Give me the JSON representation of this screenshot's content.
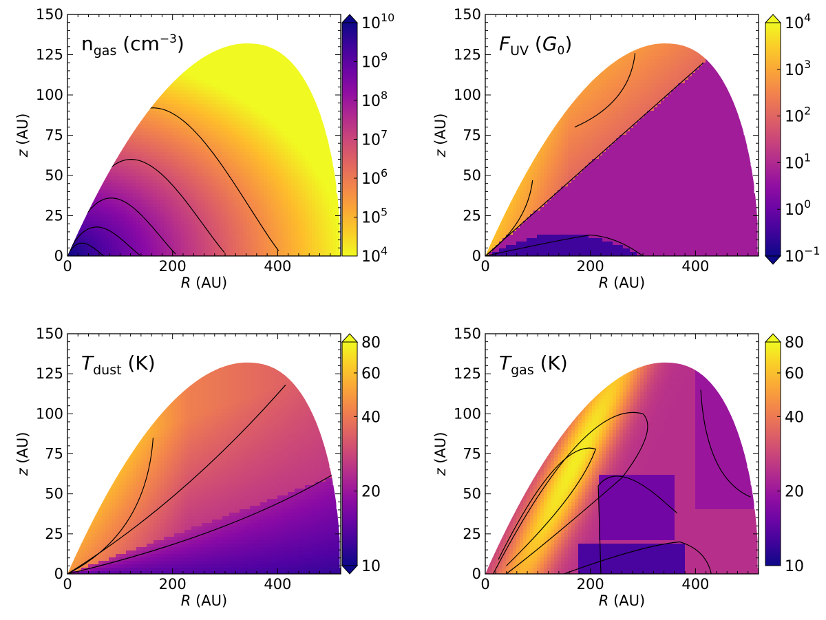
{
  "figure": {
    "panels": [
      {
        "id": "ngas",
        "label": {
          "main": "n",
          "sub": "gas",
          "post": " (cm",
          "sup": "−3",
          "close": ")",
          "italic": false
        },
        "colormap": "plasma_r",
        "colorbar": {
          "scale": "log",
          "range": [
            4,
            10
          ],
          "ticks": [
            "10^4",
            "10^5",
            "10^6",
            "10^7",
            "10^8",
            "10^9",
            "10^10"
          ],
          "extend_top": true,
          "extend_bottom": false
        }
      },
      {
        "id": "fuv",
        "label": {
          "main": "F",
          "sub": "UV",
          "post": " (",
          "sym": "G",
          "symsub": "0",
          "close": ")",
          "italic": true
        },
        "colormap": "plasma",
        "colorbar": {
          "scale": "log",
          "range": [
            -1,
            4
          ],
          "ticks": [
            "10^-1",
            "10^0",
            "10^1",
            "10^2",
            "10^3",
            "10^4"
          ],
          "extend_top": true,
          "extend_bottom": true
        }
      },
      {
        "id": "tdust",
        "label": {
          "main": "T",
          "sub": "dust",
          "post": " (K)",
          "italic": true
        },
        "colormap": "plasma",
        "colorbar": {
          "scale": "log",
          "range": [
            10,
            80
          ],
          "ticks": [
            "10",
            "20",
            "40",
            "60",
            "80"
          ],
          "extend_top": true,
          "extend_bottom": true
        }
      },
      {
        "id": "tgas",
        "label": {
          "main": "T",
          "sub": "gas",
          "post": " (K)",
          "italic": true
        },
        "colormap": "plasma",
        "colorbar": {
          "scale": "log",
          "range": [
            10,
            80
          ],
          "ticks": [
            "10",
            "20",
            "40",
            "60",
            "80"
          ],
          "extend_top": true,
          "extend_bottom": false
        }
      }
    ]
  },
  "chart_data": [
    {
      "type": "heatmap",
      "title": "n_gas (cm^-3)",
      "xlabel": "R (AU)",
      "ylabel": "z (AU)",
      "xlim": [
        0,
        520
      ],
      "ylim": [
        0,
        150
      ],
      "xticks": [
        0,
        200,
        400
      ],
      "yticks": [
        0,
        25,
        50,
        75,
        100,
        125,
        150
      ],
      "colorbar_label": "n_gas (cm^-3)",
      "colorbar_range": [
        10000,
        10000000000
      ],
      "disk_outer_radius": 520,
      "disk_max_height": 132,
      "contour_outer_radii": [
        70,
        140,
        210,
        305,
        410
      ],
      "contour_peak_heights": [
        8,
        18,
        36,
        60,
        92
      ]
    },
    {
      "type": "heatmap",
      "title": "F_UV (G_0)",
      "xlabel": "R (AU)",
      "ylabel": "z (AU)",
      "xlim": [
        0,
        520
      ],
      "ylim": [
        0,
        150
      ],
      "xticks": [
        0,
        200,
        400
      ],
      "yticks": [
        0,
        25,
        50,
        75,
        100,
        125,
        150
      ],
      "colorbar_label": "F_UV (G_0)",
      "colorbar_range": [
        0.1,
        10000
      ],
      "surface_line_end": [
        415,
        120
      ]
    },
    {
      "type": "heatmap",
      "title": "T_dust (K)",
      "xlabel": "R (AU)",
      "ylabel": "z (AU)",
      "xlim": [
        0,
        520
      ],
      "ylim": [
        0,
        150
      ],
      "xticks": [
        0,
        200,
        400
      ],
      "yticks": [
        0,
        25,
        50,
        75,
        100,
        125,
        150
      ],
      "colorbar_label": "T_dust (K)",
      "colorbar_range": [
        10,
        80
      ]
    },
    {
      "type": "heatmap",
      "title": "T_gas (K)",
      "xlabel": "R (AU)",
      "ylabel": "z (AU)",
      "xlim": [
        0,
        520
      ],
      "ylim": [
        0,
        150
      ],
      "xticks": [
        0,
        200,
        400
      ],
      "yticks": [
        0,
        25,
        50,
        75,
        100,
        125,
        150
      ],
      "colorbar_label": "T_gas (K)",
      "colorbar_range": [
        10,
        80
      ]
    }
  ]
}
